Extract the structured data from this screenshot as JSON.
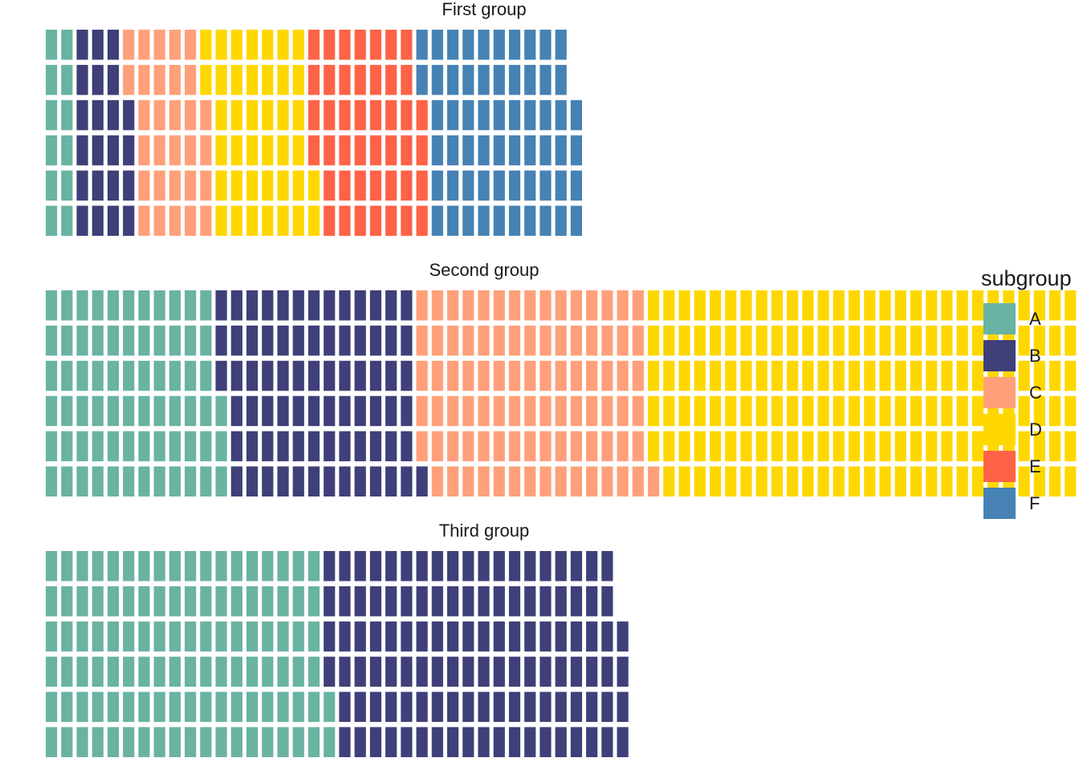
{
  "chart_data": {
    "type": "waffle",
    "rows_per_panel": 6,
    "legend": {
      "title": "subgroup",
      "placement": "right",
      "entries": [
        {
          "key": "A",
          "label": "A",
          "color": "#69b3a2"
        },
        {
          "key": "B",
          "label": "B",
          "color": "#3f3f7a"
        },
        {
          "key": "C",
          "label": "C",
          "color": "#ffa07a"
        },
        {
          "key": "D",
          "label": "D",
          "color": "#ffd700"
        },
        {
          "key": "E",
          "label": "E",
          "color": "#ff6347"
        },
        {
          "key": "F",
          "label": "F",
          "color": "#4682b4"
        }
      ]
    },
    "panels": [
      {
        "title": "First group",
        "counts": [
          {
            "subgroup": "A",
            "value": 12
          },
          {
            "subgroup": "B",
            "value": 22
          },
          {
            "subgroup": "C",
            "value": 30
          },
          {
            "subgroup": "D",
            "value": 40
          },
          {
            "subgroup": "E",
            "value": 44
          },
          {
            "subgroup": "F",
            "value": 60
          }
        ]
      },
      {
        "title": "Second group",
        "counts": [
          {
            "subgroup": "A",
            "value": 69
          },
          {
            "subgroup": "B",
            "value": 76
          },
          {
            "subgroup": "C",
            "value": 90
          },
          {
            "subgroup": "D",
            "value": 170
          }
        ]
      },
      {
        "title": "Third group",
        "counts": [
          {
            "subgroup": "A",
            "value": 110
          },
          {
            "subgroup": "B",
            "value": 116
          }
        ]
      }
    ],
    "grid": false,
    "axes": false
  }
}
